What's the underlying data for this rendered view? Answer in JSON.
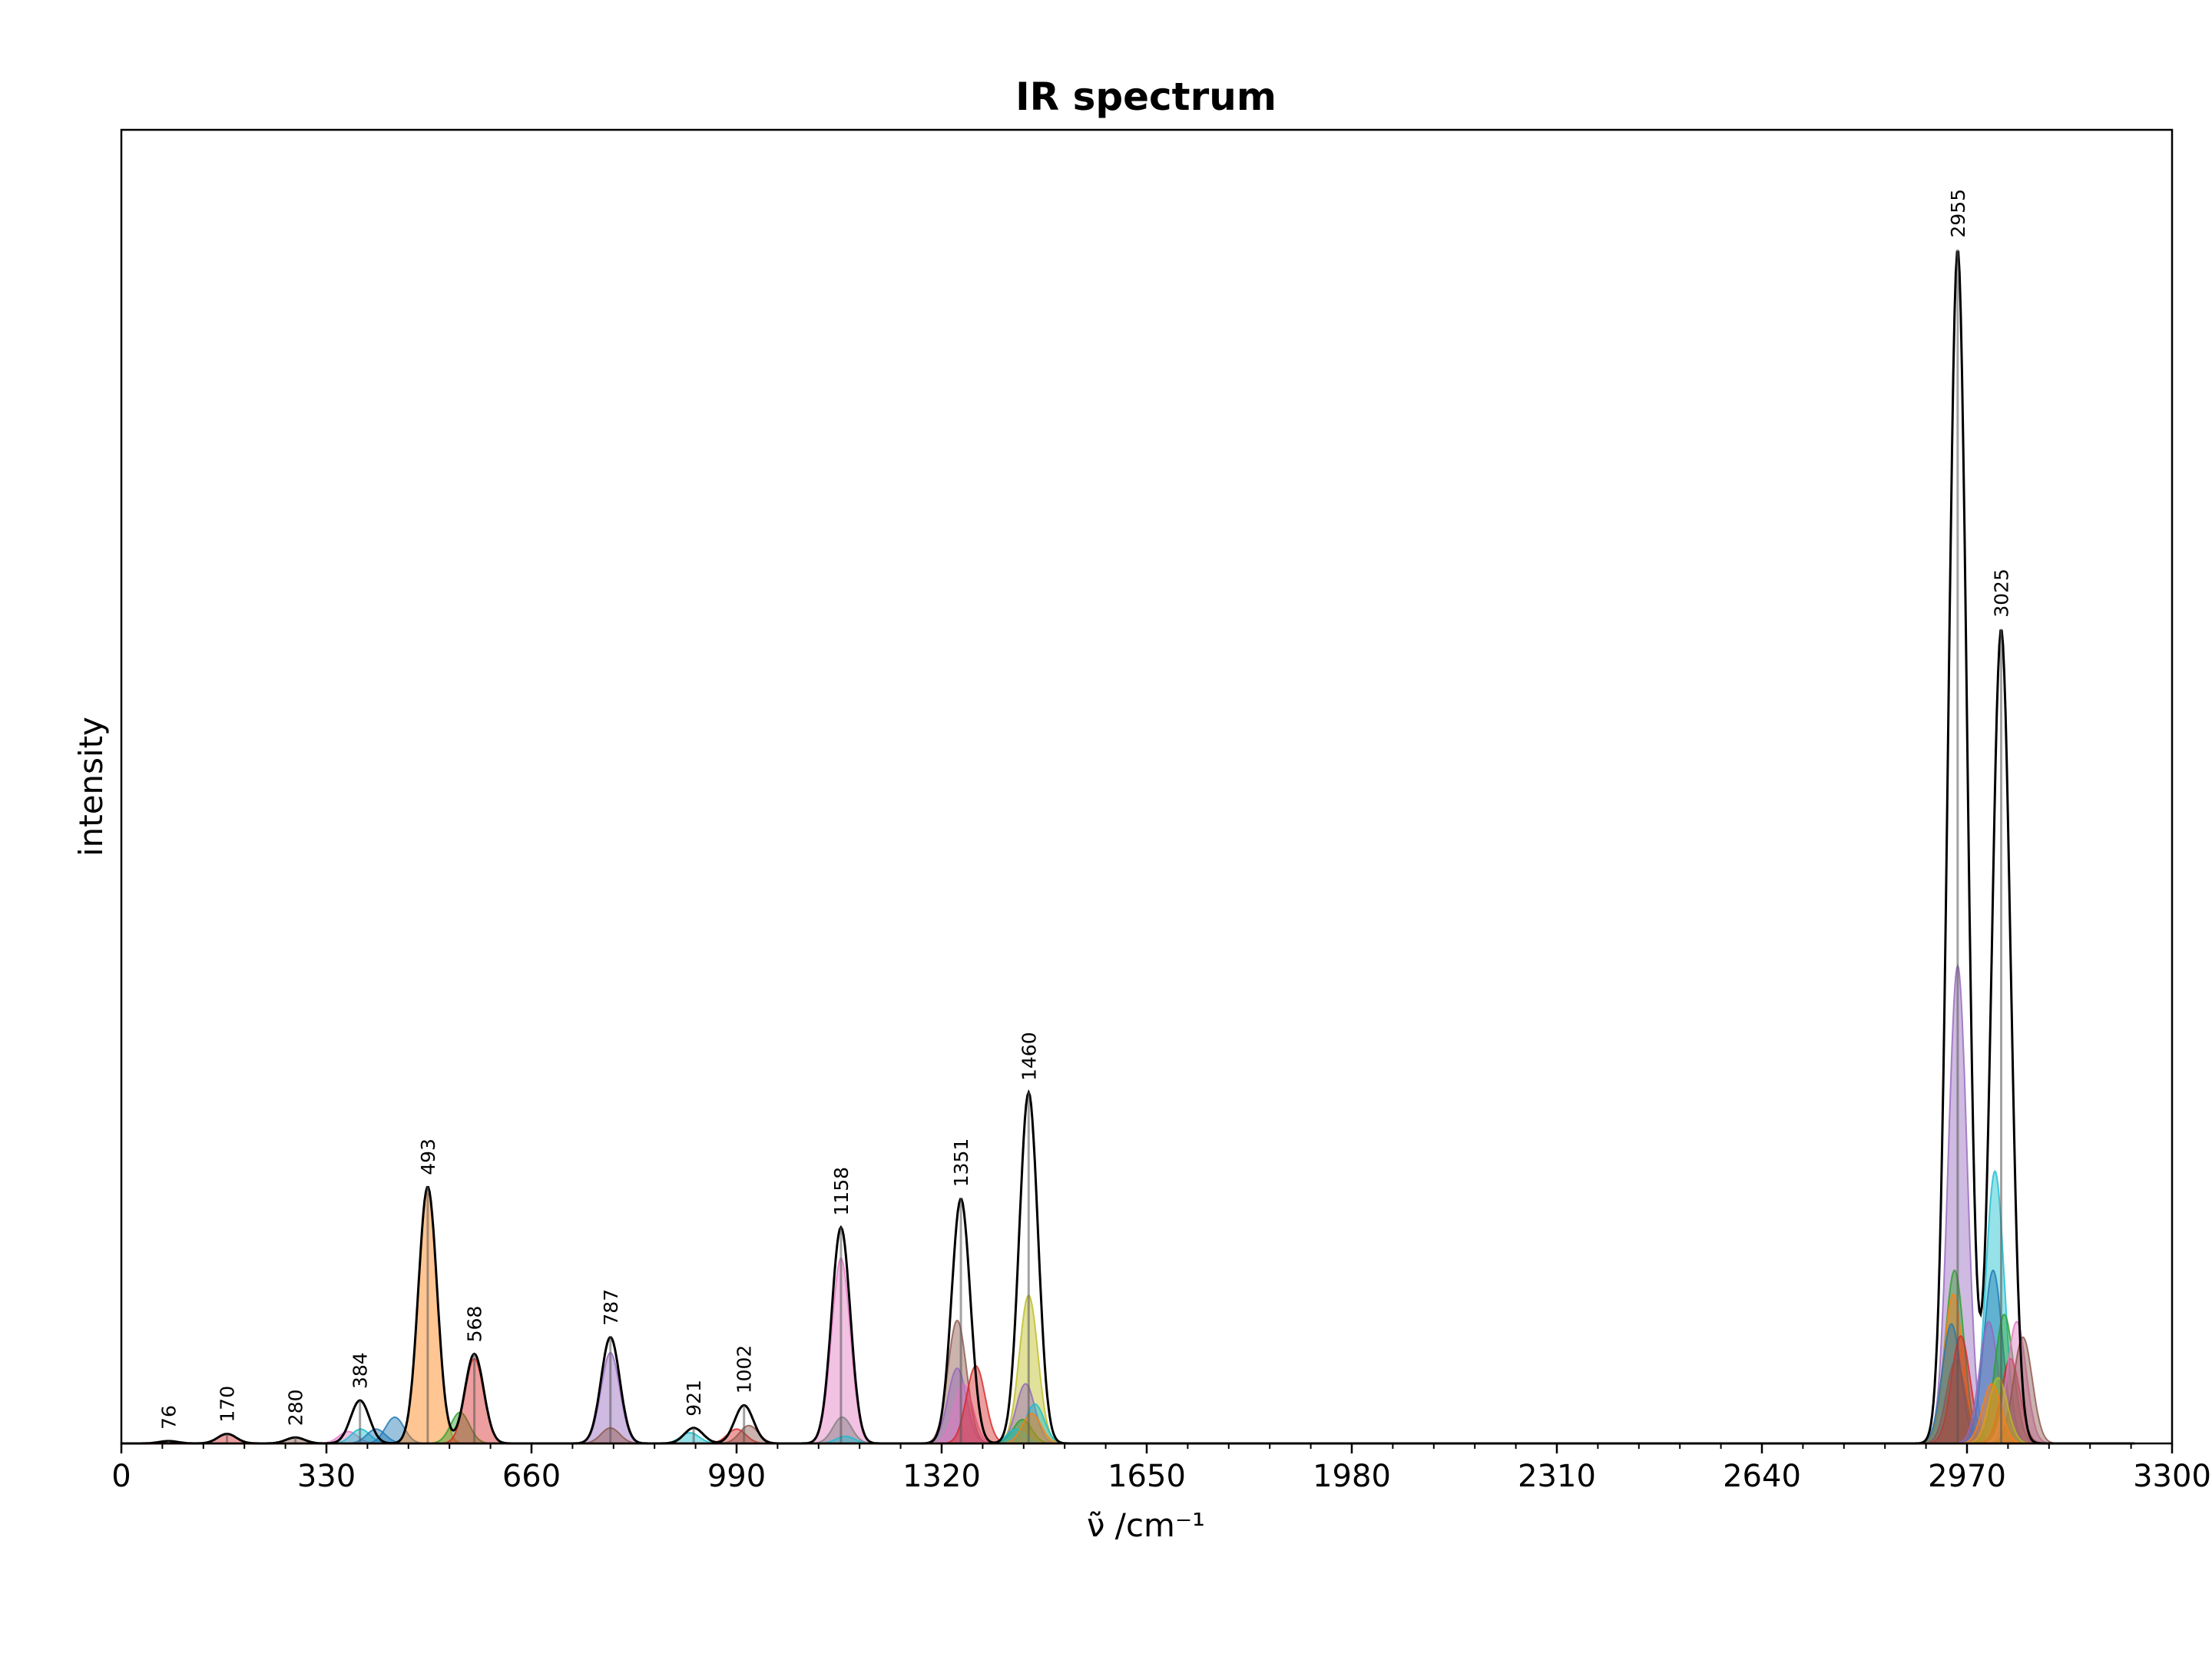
{
  "chart_data": {
    "type": "line",
    "title": "IR spectrum",
    "xlabel": "ν̃ /cm⁻¹",
    "ylabel": "intensity",
    "xlim": [
      0,
      3300
    ],
    "ylim": [
      0,
      1.1
    ],
    "x_ticks": [
      0,
      330,
      660,
      990,
      1320,
      1650,
      1980,
      2310,
      2640,
      2970,
      3300
    ],
    "x_tick_labels": [
      "0",
      "330",
      "660",
      "990",
      "1320",
      "1650",
      "1980",
      "2310",
      "2640",
      "2970",
      "3300"
    ],
    "y_ticks_shown": false,
    "grid": false,
    "legend": "none",
    "series": [
      {
        "color": "#000000",
        "peaks": [
          {
            "x": 76,
            "y": 0.002,
            "label": "76"
          },
          {
            "x": 170,
            "y": 0.008,
            "label": "170"
          },
          {
            "x": 280,
            "y": 0.005,
            "label": "280"
          },
          {
            "x": 384,
            "y": 0.036,
            "label": "384"
          },
          {
            "x": 493,
            "y": 0.215,
            "label": "493"
          },
          {
            "x": 568,
            "y": 0.075,
            "label": "568"
          },
          {
            "x": 787,
            "y": 0.089,
            "label": "787"
          },
          {
            "x": 921,
            "y": 0.013,
            "label": "921"
          },
          {
            "x": 1002,
            "y": 0.032,
            "label": "1002"
          },
          {
            "x": 1158,
            "y": 0.181,
            "label": "1158"
          },
          {
            "x": 1351,
            "y": 0.205,
            "label": "1351"
          },
          {
            "x": 1460,
            "y": 0.294,
            "label": "1460"
          },
          {
            "x": 2955,
            "y": 1.0,
            "label": "2955"
          },
          {
            "x": 3025,
            "y": 0.682,
            "label": "3025"
          }
        ]
      }
    ],
    "components": [
      {
        "x": 76,
        "y": 0.002,
        "color": "#1f77b4"
      },
      {
        "x": 170,
        "y": 0.008,
        "color": "#d62728"
      },
      {
        "x": 280,
        "y": 0.005,
        "color": "#8c564b"
      },
      {
        "x": 365,
        "y": 0.01,
        "color": "#e377c2"
      },
      {
        "x": 385,
        "y": 0.012,
        "color": "#17becf"
      },
      {
        "x": 410,
        "y": 0.012,
        "color": "#1f77b4"
      },
      {
        "x": 440,
        "y": 0.022,
        "color": "#1f77b4"
      },
      {
        "x": 493,
        "y": 0.215,
        "color": "#ff7f0e"
      },
      {
        "x": 545,
        "y": 0.026,
        "color": "#2ca02c"
      },
      {
        "x": 568,
        "y": 0.071,
        "color": "#d62728"
      },
      {
        "x": 787,
        "y": 0.076,
        "color": "#9467bd"
      },
      {
        "x": 787,
        "y": 0.013,
        "color": "#8c564b"
      },
      {
        "x": 915,
        "y": 0.009,
        "color": "#17becf"
      },
      {
        "x": 990,
        "y": 0.012,
        "color": "#d62728"
      },
      {
        "x": 1010,
        "y": 0.015,
        "color": "#8c564b"
      },
      {
        "x": 1158,
        "y": 0.155,
        "color": "#e377c2"
      },
      {
        "x": 1160,
        "y": 0.022,
        "color": "#7f7f7f"
      },
      {
        "x": 1165,
        "y": 0.006,
        "color": "#17becf"
      },
      {
        "x": 1345,
        "y": 0.103,
        "color": "#8c564b"
      },
      {
        "x": 1345,
        "y": 0.063,
        "color": "#9467bd"
      },
      {
        "x": 1355,
        "y": 0.05,
        "color": "#e377c2"
      },
      {
        "x": 1375,
        "y": 0.065,
        "color": "#d62728"
      },
      {
        "x": 1460,
        "y": 0.124,
        "color": "#bcbd22"
      },
      {
        "x": 1455,
        "y": 0.05,
        "color": "#9467bd"
      },
      {
        "x": 1470,
        "y": 0.033,
        "color": "#17becf"
      },
      {
        "x": 1450,
        "y": 0.02,
        "color": "#2ca02c"
      },
      {
        "x": 1440,
        "y": 0.012,
        "color": "#17becf"
      },
      {
        "x": 1465,
        "y": 0.025,
        "color": "#ff7f0e"
      },
      {
        "x": 2955,
        "y": 0.4,
        "color": "#9467bd"
      },
      {
        "x": 2950,
        "y": 0.145,
        "color": "#2ca02c"
      },
      {
        "x": 2948,
        "y": 0.125,
        "color": "#ff7f0e"
      },
      {
        "x": 2945,
        "y": 0.1,
        "color": "#1f77b4"
      },
      {
        "x": 2960,
        "y": 0.09,
        "color": "#d62728"
      },
      {
        "x": 2952,
        "y": 0.07,
        "color": "#8c564b"
      },
      {
        "x": 3015,
        "y": 0.228,
        "color": "#17becf"
      },
      {
        "x": 3012,
        "y": 0.145,
        "color": "#1f77b4"
      },
      {
        "x": 3005,
        "y": 0.102,
        "color": "#9467bd"
      },
      {
        "x": 3030,
        "y": 0.108,
        "color": "#2ca02c"
      },
      {
        "x": 3040,
        "y": 0.071,
        "color": "#d62728"
      },
      {
        "x": 3050,
        "y": 0.102,
        "color": "#e377c2"
      },
      {
        "x": 3060,
        "y": 0.089,
        "color": "#8c564b"
      },
      {
        "x": 3020,
        "y": 0.055,
        "color": "#bcbd22"
      },
      {
        "x": 3010,
        "y": 0.05,
        "color": "#ff7f0e"
      }
    ]
  }
}
